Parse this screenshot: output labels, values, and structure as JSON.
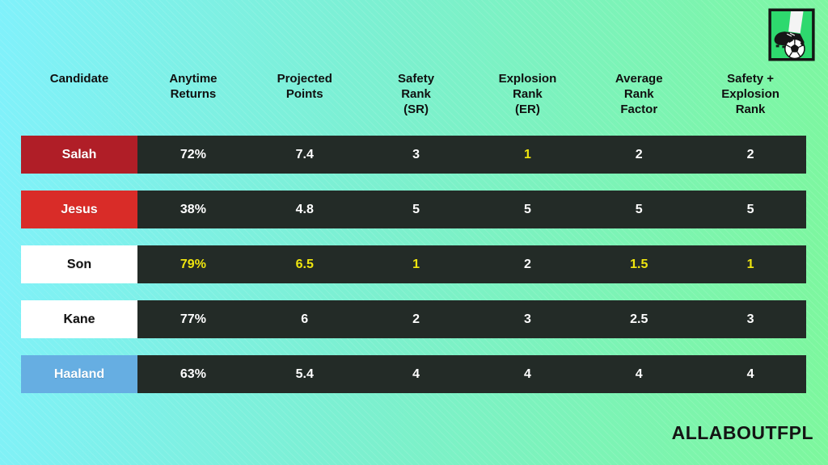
{
  "brand": {
    "watermark": "ALLABOUTFPL",
    "logo": "boot-kicking-football-logo"
  },
  "colors": {
    "background_left": "#80f1fb",
    "background_right": "#7df79d",
    "bar_dark": "#232b27",
    "highlight_yellow": "#efe50f",
    "salah_red": "#b01e27",
    "jesus_red": "#d92c28",
    "son_white": "#ffffff",
    "kane_white": "#ffffff",
    "haaland_blue": "#66aee2",
    "logo_green": "#2ed96e"
  },
  "table": {
    "headers": [
      "Candidate",
      "Anytime\nReturns",
      "Projected\nPoints",
      "Safety\nRank\n(SR)",
      "Explosion\nRank\n(ER)",
      "Average\nRank\nFactor",
      "Safety +\nExplosion\nRank"
    ],
    "rows": [
      {
        "candidate": "Salah",
        "label_bg": "#b01e27",
        "label_color": "#ffffff",
        "values": [
          {
            "text": "72%",
            "highlight": false
          },
          {
            "text": "7.4",
            "highlight": false
          },
          {
            "text": "3",
            "highlight": false
          },
          {
            "text": "1",
            "highlight": true
          },
          {
            "text": "2",
            "highlight": false
          },
          {
            "text": "2",
            "highlight": false
          }
        ]
      },
      {
        "candidate": "Jesus",
        "label_bg": "#d92c28",
        "label_color": "#ffffff",
        "values": [
          {
            "text": "38%",
            "highlight": false
          },
          {
            "text": "4.8",
            "highlight": false
          },
          {
            "text": "5",
            "highlight": false
          },
          {
            "text": "5",
            "highlight": false
          },
          {
            "text": "5",
            "highlight": false
          },
          {
            "text": "5",
            "highlight": false
          }
        ]
      },
      {
        "candidate": "Son",
        "label_bg": "#ffffff",
        "label_color": "#111111",
        "values": [
          {
            "text": "79%",
            "highlight": true
          },
          {
            "text": "6.5",
            "highlight": true
          },
          {
            "text": "1",
            "highlight": true
          },
          {
            "text": "2",
            "highlight": false
          },
          {
            "text": "1.5",
            "highlight": true
          },
          {
            "text": "1",
            "highlight": true
          }
        ]
      },
      {
        "candidate": "Kane",
        "label_bg": "#ffffff",
        "label_color": "#111111",
        "values": [
          {
            "text": "77%",
            "highlight": false
          },
          {
            "text": "6",
            "highlight": false
          },
          {
            "text": "2",
            "highlight": false
          },
          {
            "text": "3",
            "highlight": false
          },
          {
            "text": "2.5",
            "highlight": false
          },
          {
            "text": "3",
            "highlight": false
          }
        ]
      },
      {
        "candidate": "Haaland",
        "label_bg": "#66aee2",
        "label_color": "#ffffff",
        "values": [
          {
            "text": "63%",
            "highlight": false
          },
          {
            "text": "5.4",
            "highlight": false
          },
          {
            "text": "4",
            "highlight": false
          },
          {
            "text": "4",
            "highlight": false
          },
          {
            "text": "4",
            "highlight": false
          },
          {
            "text": "4",
            "highlight": false
          }
        ]
      }
    ]
  }
}
